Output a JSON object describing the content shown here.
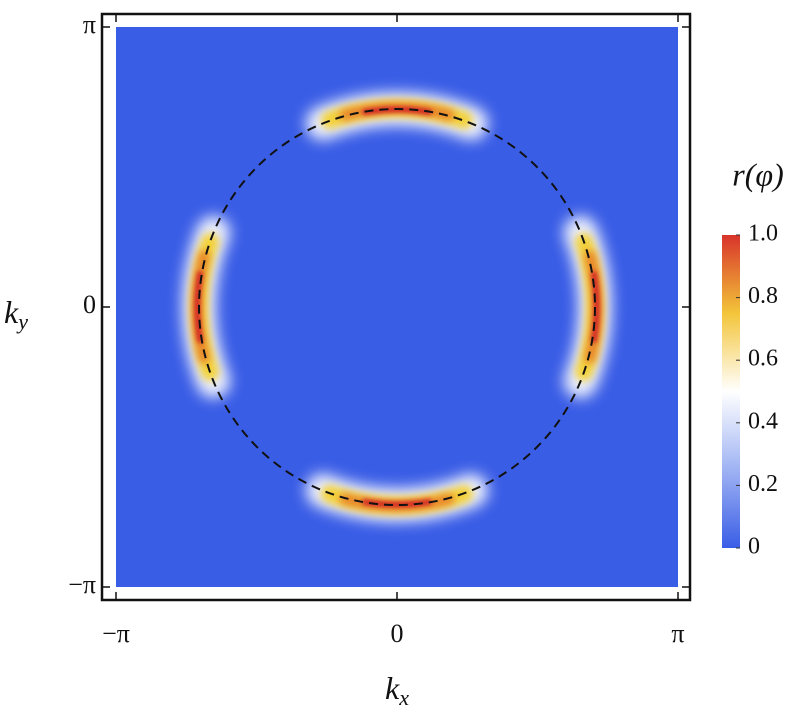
{
  "chart_data": {
    "type": "heatmap",
    "xlabel": {
      "text": "k",
      "subscript": "x"
    },
    "ylabel": {
      "text": "k",
      "subscript": "y"
    },
    "xlim": [
      -3.14159,
      3.14159
    ],
    "ylim": [
      -3.14159,
      3.14159
    ],
    "xticks": [
      {
        "value": -3.14159,
        "label": "−π"
      },
      0,
      {
        "value": 3.14159,
        "label": "π"
      }
    ],
    "yticks": [
      {
        "value": -3.14159,
        "label": "−π"
      },
      0,
      {
        "value": 3.14159,
        "label": "π"
      }
    ],
    "colorbar": {
      "label": "r(φ)",
      "lim": [
        0,
        1
      ],
      "ticks": [
        0,
        0.2,
        0.4,
        0.6,
        0.8,
        {
          "value": 1,
          "label": "1.0"
        }
      ],
      "colors": [
        "#3a5de6",
        "#9fb3f3",
        "#ffffff",
        "#f3c53a",
        "#d8342a"
      ]
    }
  }
}
